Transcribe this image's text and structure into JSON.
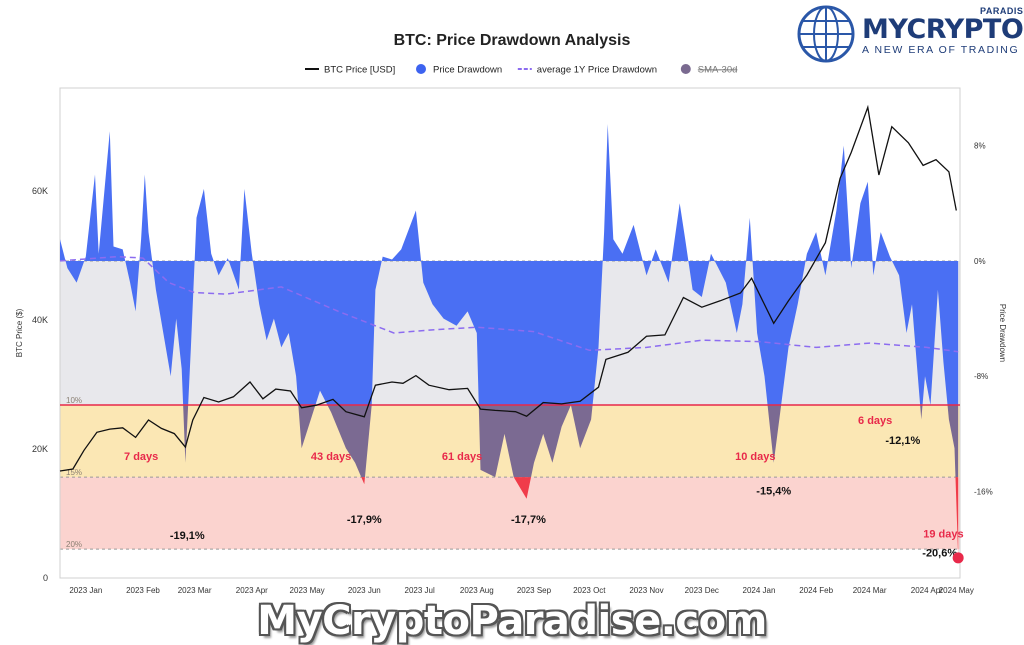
{
  "chart_data": {
    "type": "area",
    "title": "BTC: Price Drawdown Analysis",
    "legend": [
      {
        "label": "BTC Price [USD]",
        "color": "#111111",
        "kind": "line"
      },
      {
        "label": "Price Drawdown",
        "color": "#3d63f0",
        "kind": "dot"
      },
      {
        "label": "average 1Y Price Drawdown",
        "color": "#8c6cf0",
        "kind": "dash"
      },
      {
        "label": "SMA-30d",
        "color": "#7a6a90",
        "kind": "dot",
        "struck": true
      }
    ],
    "legend_position": "top-center",
    "ylabel_left": "BTC Price ($)",
    "ylabel_right": "Price Drawdown",
    "y_left_ticks": [
      "0",
      "20K",
      "40K",
      "60K"
    ],
    "y_left_range": [
      0,
      76000
    ],
    "y_right_ticks": [
      "8%",
      "0%",
      "-8%",
      "-16%"
    ],
    "y_right_range": [
      -22,
      12
    ],
    "x_ticks": [
      "2023 Jan",
      "2023 Feb",
      "2023 Mar",
      "2023 Apr",
      "2023 May",
      "2023 Jun",
      "2023 Jul",
      "2023 Aug",
      "2023 Sep",
      "2023 Oct",
      "2023 Nov",
      "2023 Dec",
      "2024 Jan",
      "2024 Feb",
      "2024 Mar",
      "2024 Apr",
      "2024 May"
    ],
    "x_range": [
      "2023-01-01",
      "2024-05-03"
    ],
    "bands": [
      {
        "label": "10%",
        "from": 0,
        "to": -10,
        "color": "#e8e8ec"
      },
      {
        "label": "15%",
        "from": -10,
        "to": -15,
        "color": "#fbe7b4"
      },
      {
        "label": "20%",
        "from": -15,
        "to": -20,
        "color": "#fbd3cf"
      }
    ],
    "threshold_line": {
      "value": -10,
      "color": "#e8294a"
    },
    "btc_price": [
      [
        "2023-01-01",
        16600
      ],
      [
        "2023-01-08",
        16900
      ],
      [
        "2023-01-14",
        19800
      ],
      [
        "2023-01-21",
        22600
      ],
      [
        "2023-01-28",
        23100
      ],
      [
        "2023-02-04",
        23300
      ],
      [
        "2023-02-11",
        21800
      ],
      [
        "2023-02-18",
        24500
      ],
      [
        "2023-02-25",
        23200
      ],
      [
        "2023-03-04",
        22400
      ],
      [
        "2023-03-10",
        20300
      ],
      [
        "2023-03-14",
        24500
      ],
      [
        "2023-03-20",
        28000
      ],
      [
        "2023-03-28",
        27300
      ],
      [
        "2023-04-05",
        28100
      ],
      [
        "2023-04-14",
        30400
      ],
      [
        "2023-04-21",
        27800
      ],
      [
        "2023-04-28",
        29300
      ],
      [
        "2023-05-06",
        29000
      ],
      [
        "2023-05-12",
        26400
      ],
      [
        "2023-05-20",
        26800
      ],
      [
        "2023-05-29",
        27700
      ],
      [
        "2023-06-05",
        25800
      ],
      [
        "2023-06-15",
        25000
      ],
      [
        "2023-06-21",
        29900
      ],
      [
        "2023-06-30",
        30400
      ],
      [
        "2023-07-06",
        30200
      ],
      [
        "2023-07-13",
        31400
      ],
      [
        "2023-07-20",
        29900
      ],
      [
        "2023-07-31",
        29200
      ],
      [
        "2023-08-10",
        29400
      ],
      [
        "2023-08-17",
        26200
      ],
      [
        "2023-08-25",
        26000
      ],
      [
        "2023-09-05",
        25800
      ],
      [
        "2023-09-11",
        25100
      ],
      [
        "2023-09-20",
        27200
      ],
      [
        "2023-09-30",
        27000
      ],
      [
        "2023-10-10",
        27400
      ],
      [
        "2023-10-20",
        29600
      ],
      [
        "2023-10-24",
        33900
      ],
      [
        "2023-11-05",
        35000
      ],
      [
        "2023-11-15",
        37500
      ],
      [
        "2023-11-25",
        37700
      ],
      [
        "2023-12-05",
        43500
      ],
      [
        "2023-12-15",
        42000
      ],
      [
        "2023-12-25",
        43000
      ],
      [
        "2024-01-05",
        44200
      ],
      [
        "2024-01-11",
        46500
      ],
      [
        "2024-01-23",
        39500
      ],
      [
        "2024-01-31",
        43000
      ],
      [
        "2024-02-10",
        47000
      ],
      [
        "2024-02-20",
        52000
      ],
      [
        "2024-02-28",
        62000
      ],
      [
        "2024-03-05",
        66000
      ],
      [
        "2024-03-14",
        73000
      ],
      [
        "2024-03-20",
        62500
      ],
      [
        "2024-03-27",
        70000
      ],
      [
        "2024-04-05",
        67500
      ],
      [
        "2024-04-13",
        64000
      ],
      [
        "2024-04-20",
        64900
      ],
      [
        "2024-04-27",
        63000
      ],
      [
        "2024-05-01",
        57000
      ]
    ],
    "price_drawdown": [
      [
        "2023-01-01",
        1.5
      ],
      [
        "2023-01-05",
        -0.5
      ],
      [
        "2023-01-10",
        -1.5
      ],
      [
        "2023-01-15",
        0.3
      ],
      [
        "2023-01-20",
        6
      ],
      [
        "2023-01-22",
        0.5
      ],
      [
        "2023-01-28",
        9
      ],
      [
        "2023-01-30",
        1
      ],
      [
        "2023-02-04",
        0.8
      ],
      [
        "2023-02-08",
        -1.5
      ],
      [
        "2023-02-11",
        -3.5
      ],
      [
        "2023-02-14",
        1.5
      ],
      [
        "2023-02-16",
        6
      ],
      [
        "2023-02-18",
        2
      ],
      [
        "2023-02-22",
        -2
      ],
      [
        "2023-02-26",
        -5
      ],
      [
        "2023-03-02",
        -8
      ],
      [
        "2023-03-05",
        -4
      ],
      [
        "2023-03-08",
        -7.5
      ],
      [
        "2023-03-10",
        -14
      ],
      [
        "2023-03-13",
        -6
      ],
      [
        "2023-03-16",
        3
      ],
      [
        "2023-03-20",
        5
      ],
      [
        "2023-03-24",
        0.5
      ],
      [
        "2023-03-28",
        -1
      ],
      [
        "2023-04-02",
        0.2
      ],
      [
        "2023-04-08",
        -2
      ],
      [
        "2023-04-11",
        5
      ],
      [
        "2023-04-15",
        0.5
      ],
      [
        "2023-04-19",
        -3
      ],
      [
        "2023-04-23",
        -5.5
      ],
      [
        "2023-04-27",
        -4
      ],
      [
        "2023-05-01",
        -6
      ],
      [
        "2023-05-05",
        -5
      ],
      [
        "2023-05-09",
        -8
      ],
      [
        "2023-05-12",
        -13
      ],
      [
        "2023-05-17",
        -11
      ],
      [
        "2023-05-22",
        -9
      ],
      [
        "2023-05-28",
        -10.5
      ],
      [
        "2023-06-05",
        -13
      ],
      [
        "2023-06-10",
        -14
      ],
      [
        "2023-06-15",
        -15.5
      ],
      [
        "2023-06-19",
        -10
      ],
      [
        "2023-06-21",
        -2
      ],
      [
        "2023-06-25",
        0.3
      ],
      [
        "2023-06-30",
        0.1
      ],
      [
        "2023-07-05",
        0.8
      ],
      [
        "2023-07-13",
        3.5
      ],
      [
        "2023-07-17",
        -1.5
      ],
      [
        "2023-07-22",
        -3
      ],
      [
        "2023-07-28",
        -4
      ],
      [
        "2023-08-04",
        -4.5
      ],
      [
        "2023-08-10",
        -3.5
      ],
      [
        "2023-08-15",
        -5
      ],
      [
        "2023-08-17",
        -14.5
      ],
      [
        "2023-08-25",
        -15
      ],
      [
        "2023-08-30",
        -12
      ],
      [
        "2023-09-04",
        -15
      ],
      [
        "2023-09-11",
        -16.5
      ],
      [
        "2023-09-15",
        -14
      ],
      [
        "2023-09-20",
        -12
      ],
      [
        "2023-09-25",
        -14
      ],
      [
        "2023-09-30",
        -11.5
      ],
      [
        "2023-10-05",
        -10
      ],
      [
        "2023-10-10",
        -13
      ],
      [
        "2023-10-16",
        -11
      ],
      [
        "2023-10-20",
        -6
      ],
      [
        "2023-10-23",
        2
      ],
      [
        "2023-10-25",
        9.5
      ],
      [
        "2023-10-28",
        1.5
      ],
      [
        "2023-11-02",
        0.5
      ],
      [
        "2023-11-08",
        2.5
      ],
      [
        "2023-11-15",
        -1
      ],
      [
        "2023-11-20",
        0.8
      ],
      [
        "2023-11-27",
        -1.5
      ],
      [
        "2023-12-03",
        4
      ],
      [
        "2023-12-06",
        1.5
      ],
      [
        "2023-12-10",
        -2
      ],
      [
        "2023-12-15",
        -2.5
      ],
      [
        "2023-12-20",
        0.5
      ],
      [
        "2023-12-28",
        -1.5
      ],
      [
        "2024-01-03",
        -5
      ],
      [
        "2024-01-06",
        -3
      ],
      [
        "2024-01-10",
        3
      ],
      [
        "2024-01-14",
        -5
      ],
      [
        "2024-01-18",
        -8
      ],
      [
        "2024-01-23",
        -14
      ],
      [
        "2024-01-26",
        -11
      ],
      [
        "2024-01-31",
        -6
      ],
      [
        "2024-02-05",
        -3
      ],
      [
        "2024-02-10",
        0.5
      ],
      [
        "2024-02-15",
        2
      ],
      [
        "2024-02-20",
        -1
      ],
      [
        "2024-02-26",
        3.5
      ],
      [
        "2024-03-01",
        8
      ],
      [
        "2024-03-05",
        -0.5
      ],
      [
        "2024-03-10",
        4
      ],
      [
        "2024-03-14",
        5.5
      ],
      [
        "2024-03-17",
        -1
      ],
      [
        "2024-03-21",
        2
      ],
      [
        "2024-03-26",
        0.3
      ],
      [
        "2024-03-31",
        -1
      ],
      [
        "2024-04-04",
        -5
      ],
      [
        "2024-04-07",
        -3
      ],
      [
        "2024-04-12",
        -11
      ],
      [
        "2024-04-14",
        -8
      ],
      [
        "2024-04-17",
        -10
      ],
      [
        "2024-04-21",
        -2
      ],
      [
        "2024-04-24",
        -7
      ],
      [
        "2024-04-27",
        -11
      ],
      [
        "2024-04-30",
        -13
      ],
      [
        "2024-05-02",
        -20.6
      ]
    ],
    "avg_1y_drawdown": [
      [
        "2023-01-01",
        0
      ],
      [
        "2023-02-01",
        0.3
      ],
      [
        "2023-02-15",
        0.2
      ],
      [
        "2023-03-01",
        -1.5
      ],
      [
        "2023-03-15",
        -2.2
      ],
      [
        "2023-04-01",
        -2.3
      ],
      [
        "2023-05-01",
        -1.8
      ],
      [
        "2023-06-01",
        -3.5
      ],
      [
        "2023-07-01",
        -5
      ],
      [
        "2023-07-20",
        -4.8
      ],
      [
        "2023-08-15",
        -4.6
      ],
      [
        "2023-09-15",
        -4.9
      ],
      [
        "2023-10-15",
        -6.2
      ],
      [
        "2023-11-15",
        -6.0
      ],
      [
        "2023-12-15",
        -5.5
      ],
      [
        "2024-01-15",
        -5.6
      ],
      [
        "2024-02-15",
        -6.0
      ],
      [
        "2024-03-15",
        -5.7
      ],
      [
        "2024-04-15",
        -6.0
      ],
      [
        "2024-05-02",
        -6.3
      ]
    ],
    "annotations": [
      {
        "text": "7 days",
        "x": "2023-02-14",
        "y": -13.8,
        "color": "#e8294a"
      },
      {
        "text": "43 days",
        "x": "2023-05-28",
        "y": -13.8,
        "color": "#e8294a"
      },
      {
        "text": "61 days",
        "x": "2023-08-07",
        "y": -13.8,
        "color": "#e8294a"
      },
      {
        "text": "10 days",
        "x": "2024-01-13",
        "y": -13.8,
        "color": "#e8294a"
      },
      {
        "text": "6 days",
        "x": "2024-03-18",
        "y": -11.3,
        "color": "#e8294a"
      },
      {
        "text": "19 days",
        "x": "2024-04-24",
        "y": -19.2,
        "color": "#e8294a"
      },
      {
        "text": "-19,1%",
        "x": "2023-03-11",
        "y": -19.3,
        "color": "#111111"
      },
      {
        "text": "-17,9%",
        "x": "2023-06-15",
        "y": -18.2,
        "color": "#111111"
      },
      {
        "text": "-17,7%",
        "x": "2023-09-12",
        "y": -18.2,
        "color": "#111111"
      },
      {
        "text": "-15,4%",
        "x": "2024-01-23",
        "y": -16.2,
        "color": "#111111"
      },
      {
        "text": "-12,1%",
        "x": "2024-04-02",
        "y": -12.7,
        "color": "#111111"
      },
      {
        "text": "-20,6%",
        "x": "2024-04-22",
        "y": -20.5,
        "color": "#111111"
      }
    ],
    "endpoint_marker": {
      "x": "2024-05-02",
      "y": -20.6,
      "color": "#e8294a"
    },
    "grid": false
  },
  "logo": {
    "brand": "MYCRYPTO",
    "brand_top": "PARADISE",
    "tagline": "A NEW ERA OF TRADING"
  },
  "watermark": "MyCryptoParadise.com"
}
